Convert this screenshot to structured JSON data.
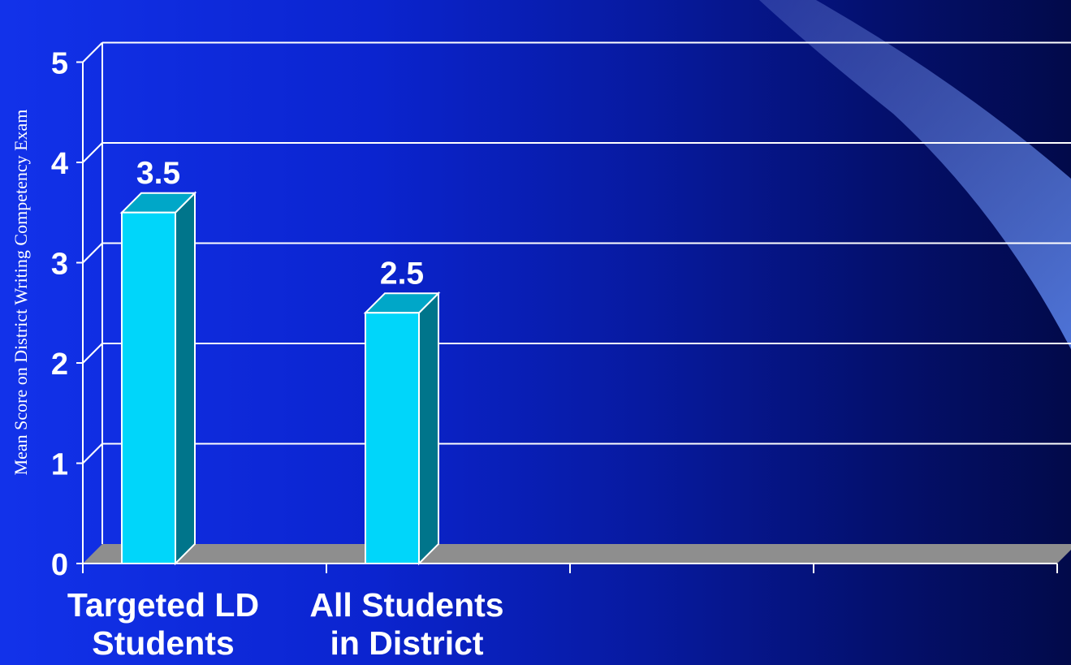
{
  "chart_data": {
    "type": "bar",
    "categories": [
      "Targeted LD Students",
      "All Students in District"
    ],
    "category_lines": [
      [
        "Targeted LD",
        "Students"
      ],
      [
        "All Students",
        "in District"
      ]
    ],
    "values": [
      3.5,
      2.5
    ],
    "data_labels": [
      "3.5",
      "2.5"
    ],
    "ylabel": "Mean Score on District Writing Competency Exam",
    "ylim": [
      0,
      5
    ],
    "y_ticks": [
      "0",
      "1",
      "2",
      "3",
      "4",
      "5"
    ],
    "x_slots": 4,
    "grid": true,
    "style": "3d",
    "colors": {
      "bar_face": "#00d6fa",
      "bar_side": "#00758b",
      "bar_top": "#00a7c8",
      "floor": "#8e8e8e",
      "grid": "#ffffff"
    }
  }
}
